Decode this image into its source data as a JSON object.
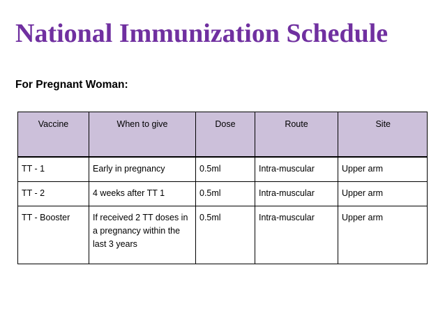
{
  "title": "National Immunization Schedule",
  "subtitle": "For Pregnant Woman:",
  "table": {
    "headers": [
      "Vaccine",
      "When to give",
      "Dose",
      "Route",
      "Site"
    ],
    "rows": [
      [
        "TT - 1",
        "Early in pregnancy",
        "0.5ml",
        "Intra-muscular",
        "Upper arm"
      ],
      [
        "TT - 2",
        "4 weeks after TT 1",
        "0.5ml",
        "Intra-muscular",
        "Upper arm"
      ],
      [
        "TT - Booster",
        "If received 2 TT doses in a pregnancy within the last 3 years",
        "0.5ml",
        "Intra-muscular",
        "Upper arm"
      ]
    ]
  },
  "colors": {
    "title": "#7030a0",
    "header_bg": "#ccc0da"
  }
}
